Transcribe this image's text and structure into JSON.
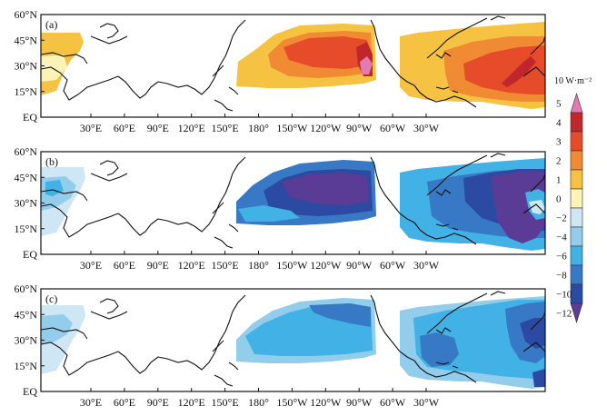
{
  "figure": {
    "type": "multi-panel map",
    "x_tick_labels": [
      "30°E",
      "60°E",
      "90°E",
      "120°E",
      "150°E",
      "180°",
      "150°W",
      "120°W",
      "90°W",
      "60°W",
      "30°W"
    ],
    "y_tick_labels": [
      "EQ",
      "15°N",
      "30°N",
      "45°N",
      "60°N"
    ]
  },
  "panels": [
    {
      "label": "(a)"
    },
    {
      "label": "(b)"
    },
    {
      "label": "(c)"
    }
  ],
  "colorbar": {
    "unit_label": "10 W·m⁻²",
    "tick_labels": [
      "5",
      "4",
      "3",
      "2",
      "1",
      "0",
      "−2",
      "−4",
      "−6",
      "−8",
      "−10",
      "−12"
    ],
    "colors": {
      "c5": "#e07bb3",
      "c4": "#c0262c",
      "c3": "#e64c2a",
      "c2": "#f08a33",
      "c1": "#f5c242",
      "c0": "#fdf3b8",
      "cm2": "#cfe7f5",
      "cm4": "#93cdec",
      "cm6": "#41b1e6",
      "cm8": "#3779c4",
      "cm10": "#2c4aa1",
      "cm12": "#5a3c96"
    }
  }
}
